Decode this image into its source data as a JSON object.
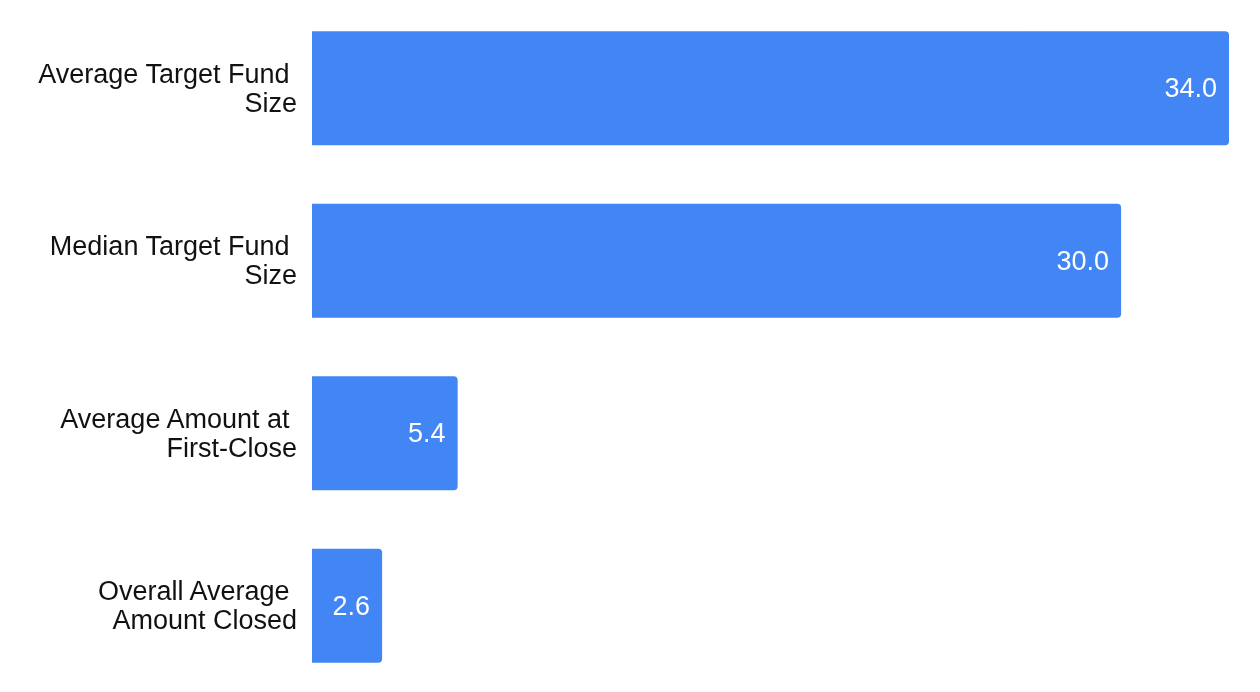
{
  "chart_data": {
    "type": "bar",
    "orientation": "horizontal",
    "categories": [
      "Average Target Fund Size",
      "Median Target Fund Size",
      "Average Amount at First-Close",
      "Overall Average Amount Closed"
    ],
    "values": [
      34.0,
      30.0,
      5.4,
      2.6
    ],
    "value_labels": [
      "34.0",
      "30.0",
      "5.4",
      "2.6"
    ],
    "color": "#4285f4"
  }
}
